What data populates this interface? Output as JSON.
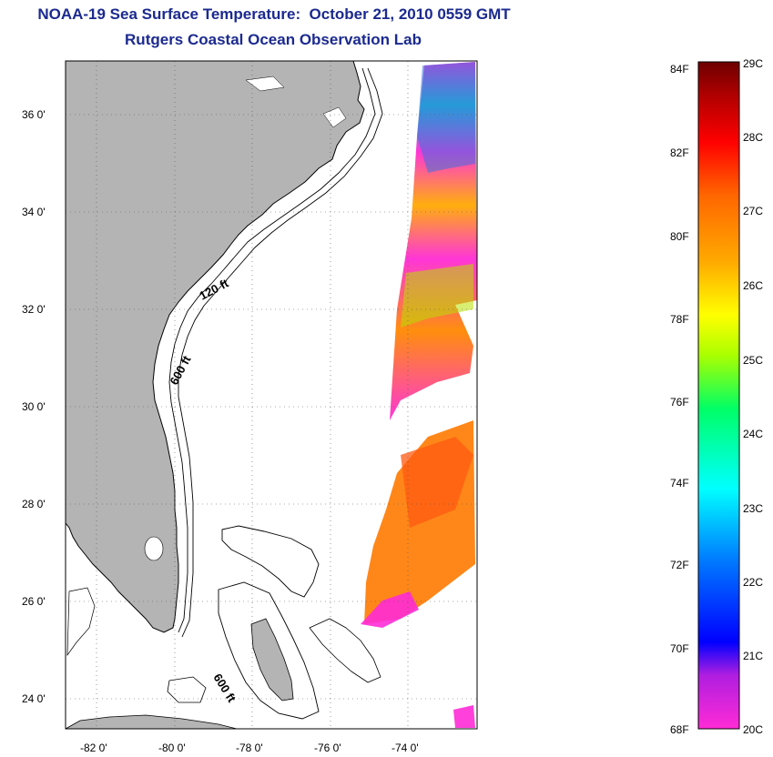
{
  "title": "NOAA-19 Sea Surface Temperature:  October 21, 2010 0559 GMT",
  "subtitle": "Rutgers Coastal Ocean Observation Lab",
  "map": {
    "lon_labels": [
      "-82 0'",
      "-80 0'",
      "-78 0'",
      "-76 0'",
      "-74 0'"
    ],
    "lat_labels": [
      "36 0'",
      "34 0'",
      "32 0'",
      "30 0'",
      "28 0'",
      "26 0'",
      "24 0'"
    ],
    "lon_range": [
      -83,
      -72.5
    ],
    "lat_range": [
      23,
      37
    ],
    "isobath_labels": [
      {
        "text": "120 ft",
        "key": "isobath-120ft-label"
      },
      {
        "text": "600 ft",
        "key": "isobath-600ft-label"
      },
      {
        "text": "600 ft",
        "key": "isobath-600ft-bahamas-label"
      }
    ],
    "colors": {
      "land": "#b4b4b4",
      "ocean": "#ffffff",
      "coastline": "#000000"
    }
  },
  "colorbar": {
    "f_labels": [
      "84F",
      "82F",
      "80F",
      "78F",
      "76F",
      "74F",
      "72F",
      "70F",
      "68F"
    ],
    "c_labels": [
      "29C",
      "28C",
      "27C",
      "26C",
      "25C",
      "24C",
      "23C",
      "22C",
      "21C",
      "20C"
    ],
    "range_f": [
      68,
      84
    ],
    "colors": [
      "#ff2bd6",
      "#8a2be2",
      "#0000ff",
      "#0088ff",
      "#00ffff",
      "#00ff66",
      "#aaff00",
      "#ffff00",
      "#ffaa00",
      "#ff6600",
      "#ff0000",
      "#b00000",
      "#6e0000"
    ]
  }
}
